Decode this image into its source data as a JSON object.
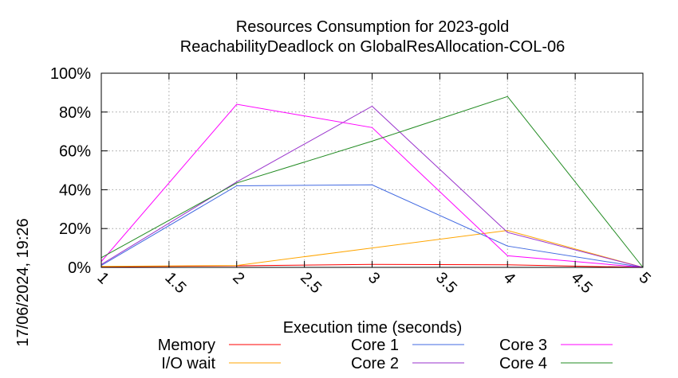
{
  "chart_data": {
    "type": "line",
    "title": [
      "Resources Consumption for 2023-gold",
      "ReachabilityDeadlock on GlobalResAllocation-COL-06"
    ],
    "xlabel": "Execution time (seconds)",
    "ylabel": "",
    "side_label": "17/06/2024, 19:26",
    "xlim": [
      1,
      5
    ],
    "ylim": [
      0,
      100
    ],
    "x_ticks": [
      1,
      1.5,
      2,
      2.5,
      3,
      3.5,
      4,
      4.5,
      5
    ],
    "x_tick_labels": [
      "1",
      "1.5",
      "2",
      "2.5",
      "3",
      "3.5",
      "4",
      "4.5",
      "5"
    ],
    "y_ticks": [
      0,
      20,
      40,
      60,
      80,
      100
    ],
    "y_tick_labels": [
      "0%",
      "20%",
      "40%",
      "60%",
      "80%",
      "100%"
    ],
    "grid": true,
    "legend_placement": "bottom",
    "series": [
      {
        "name": "Memory",
        "color": "#ff0000",
        "x": [
          1,
          2,
          3,
          4,
          5
        ],
        "y": [
          0.3,
          0.8,
          1.5,
          1.3,
          0
        ]
      },
      {
        "name": "I/O wait",
        "color": "#ffa500",
        "x": [
          1,
          2,
          3,
          4,
          5
        ],
        "y": [
          0.5,
          1,
          10,
          19,
          0
        ]
      },
      {
        "name": "Core 1",
        "color": "#4169e1",
        "x": [
          1,
          2,
          3,
          4,
          5
        ],
        "y": [
          1,
          42,
          42.5,
          11,
          0
        ]
      },
      {
        "name": "Core 2",
        "color": "#9932cc",
        "x": [
          1,
          2,
          3,
          4,
          5
        ],
        "y": [
          1.5,
          44,
          83,
          18,
          0
        ]
      },
      {
        "name": "Core 3",
        "color": "#ff00ff",
        "x": [
          1,
          2,
          3,
          4,
          5
        ],
        "y": [
          3,
          84,
          72,
          6,
          0
        ]
      },
      {
        "name": "Core 4",
        "color": "#228b22",
        "x": [
          1,
          2,
          3,
          4,
          5
        ],
        "y": [
          5,
          43.5,
          65,
          88,
          0
        ]
      }
    ]
  }
}
